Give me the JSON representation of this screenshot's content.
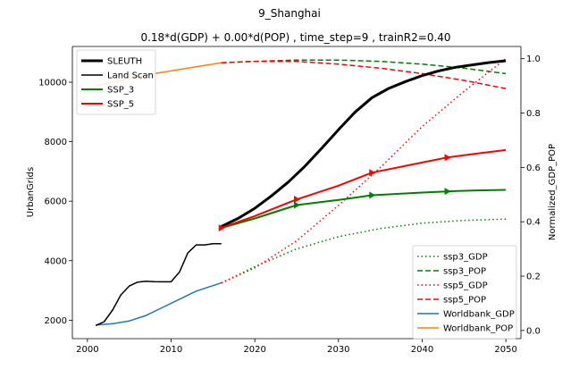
{
  "chart_data": {
    "type": "line",
    "suptitle": "9_Shanghai",
    "title": "0.18*d(GDP) + 0.00*d(POP) , time_step=9 , trainR2=0.40",
    "xlabel": "",
    "ylabel": "UrbanGrids",
    "ylabel_right": "Normalized_GDP_POP",
    "xlim": [
      1998.2,
      2051.8
    ],
    "ylim": [
      1380,
      11200
    ],
    "ylim_right": [
      -0.03,
      1.045
    ],
    "xticks": [
      2000,
      2010,
      2020,
      2030,
      2040,
      2050
    ],
    "yticks": [
      2000,
      4000,
      6000,
      8000,
      10000
    ],
    "yticks_right": [
      0.0,
      0.2,
      0.4,
      0.6,
      0.8,
      1.0
    ],
    "legend_left": [
      {
        "label": "SLEUTH",
        "color": "#000000",
        "dash": "solid",
        "width": 3
      },
      {
        "label": "Land Scan",
        "color": "#000000",
        "dash": "solid",
        "width": 1.5
      },
      {
        "label": "SSP_3",
        "color": "#008000",
        "dash": "solid",
        "width": 2
      },
      {
        "label": "SSP_5",
        "color": "#ff0000",
        "dash": "solid",
        "width": 2
      }
    ],
    "legend_right": [
      {
        "label": "ssp3_GDP",
        "color": "#008000",
        "dash": "dotted"
      },
      {
        "label": "ssp3_POP",
        "color": "#008000",
        "dash": "dashed"
      },
      {
        "label": "ssp5_GDP",
        "color": "#ff0000",
        "dash": "dotted"
      },
      {
        "label": "ssp5_POP",
        "color": "#ff0000",
        "dash": "dashed"
      },
      {
        "label": "Worldbank_GDP",
        "color": "#1f77b4",
        "dash": "solid"
      },
      {
        "label": "Worldbank_POP",
        "color": "#ff7f0e",
        "dash": "solid"
      }
    ],
    "series_left": [
      {
        "name": "SLEUTH",
        "color": "#000000",
        "width": 3,
        "x": [
          2016,
          2018,
          2020,
          2022,
          2024,
          2026,
          2028,
          2030,
          2032,
          2034,
          2036,
          2038,
          2040,
          2042,
          2044,
          2046,
          2048,
          2050
        ],
        "y": [
          5150,
          5420,
          5760,
          6180,
          6640,
          7180,
          7780,
          8400,
          9000,
          9480,
          9790,
          10020,
          10220,
          10380,
          10500,
          10580,
          10660,
          10720
        ]
      },
      {
        "name": "Land Scan",
        "color": "#000000",
        "width": 1.5,
        "x": [
          2001,
          2002,
          2003,
          2004,
          2005,
          2006,
          2007,
          2008,
          2009,
          2010,
          2011,
          2012,
          2013,
          2014,
          2015,
          2016
        ],
        "y": [
          1820,
          1950,
          2340,
          2850,
          3150,
          3280,
          3310,
          3295,
          3290,
          3290,
          3620,
          4260,
          4530,
          4530,
          4570,
          4570
        ]
      },
      {
        "name": "SSP_3",
        "color": "#008000",
        "width": 2,
        "x": [
          2016,
          2020,
          2025,
          2030,
          2034,
          2040,
          2043,
          2046,
          2050
        ],
        "y": [
          5100,
          5420,
          5870,
          6040,
          6200,
          6290,
          6330,
          6360,
          6380
        ],
        "markers_x": [
          2025,
          2034,
          2043
        ]
      },
      {
        "name": "SSP_5",
        "color": "#ff0000",
        "width": 2,
        "x": [
          2016,
          2020,
          2025,
          2030,
          2034,
          2040,
          2043,
          2046,
          2050
        ],
        "y": [
          5100,
          5500,
          6060,
          6520,
          6960,
          7300,
          7470,
          7580,
          7720
        ],
        "markers_x": [
          2016,
          2025,
          2034,
          2043
        ]
      }
    ],
    "series_right": [
      {
        "name": "ssp3_GDP",
        "color": "#008000",
        "dash": "dotted",
        "x": [
          2016,
          2020,
          2025,
          2030,
          2035,
          2040,
          2045,
          2050
        ],
        "y": [
          0.175,
          0.235,
          0.3,
          0.345,
          0.375,
          0.395,
          0.405,
          0.41
        ]
      },
      {
        "name": "ssp3_POP",
        "color": "#008000",
        "dash": "dashed",
        "x": [
          2016,
          2020,
          2025,
          2030,
          2035,
          2040,
          2045,
          2050
        ],
        "y": [
          0.985,
          0.99,
          0.995,
          0.995,
          0.99,
          0.98,
          0.965,
          0.945
        ]
      },
      {
        "name": "ssp5_GDP",
        "color": "#ff0000",
        "dash": "dotted",
        "x": [
          2016,
          2020,
          2025,
          2030,
          2035,
          2040,
          2045,
          2050
        ],
        "y": [
          0.175,
          0.23,
          0.33,
          0.46,
          0.6,
          0.75,
          0.88,
          1.0
        ]
      },
      {
        "name": "ssp5_POP",
        "color": "#ff0000",
        "dash": "dashed",
        "x": [
          2016,
          2020,
          2025,
          2030,
          2035,
          2040,
          2045,
          2050
        ],
        "y": [
          0.985,
          0.99,
          0.99,
          0.98,
          0.965,
          0.945,
          0.92,
          0.89
        ]
      },
      {
        "name": "Worldbank_GDP",
        "color": "#1f77b4",
        "dash": "solid",
        "x": [
          2001,
          2003,
          2005,
          2007,
          2009,
          2011,
          2013,
          2015,
          2016
        ],
        "y": [
          0.02,
          0.025,
          0.035,
          0.055,
          0.085,
          0.115,
          0.145,
          0.165,
          0.175
        ]
      },
      {
        "name": "Worldbank_POP",
        "color": "#ff7f0e",
        "dash": "solid",
        "x": [
          2001,
          2004,
          2008,
          2012,
          2016
        ],
        "y": [
          0.9,
          0.92,
          0.945,
          0.965,
          0.985
        ]
      }
    ]
  }
}
